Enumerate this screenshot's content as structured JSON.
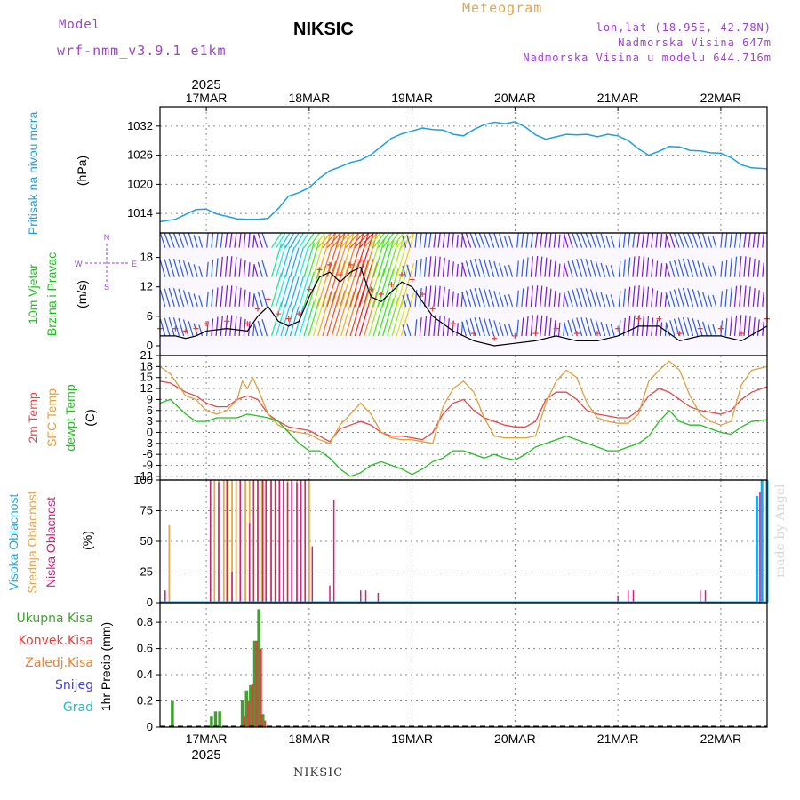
{
  "header": {
    "model_label": "Model",
    "model_value": "wrf-nmm_v3.9.1 e1km",
    "station": "NIKSIC",
    "product": "Meteogram",
    "lonlat": "lon,lat (18.95E, 42.78N)",
    "elevation": "Nadmorska Visina 647m",
    "model_elevation": "Nadmorska Visina u modelu 644.716m"
  },
  "footer": {
    "station": "NIKSIC",
    "credit": "made by Angel"
  },
  "time_axis": {
    "year": "2025",
    "dates": [
      "17MAR",
      "18MAR",
      "19MAR",
      "20MAR",
      "21MAR",
      "22MAR"
    ]
  },
  "panel_labels": {
    "pressure": [
      "Pritisak na nivou mora",
      "(hPa)"
    ],
    "wind": [
      "10m Vjetar",
      "Brzina i Pravac",
      "(m/s)"
    ],
    "compass": {
      "n": "N",
      "e": "E",
      "w": "W",
      "s": "S"
    },
    "temp": [
      "2m Temp",
      "SFC Temp",
      "dewpt Temp",
      "(C)"
    ],
    "cloud": [
      "Visoka Oblacnost",
      "Srednja Oblacnost",
      "Niska Oblacnost",
      "(%)"
    ],
    "precip": [
      "Ukupna Kisa",
      "Konvek.Kisa",
      "Zaledj.Kisa",
      "Snijeg",
      "Grad",
      "1hr Precip (mm)"
    ]
  },
  "colors": {
    "pressure": "#1ca0e0",
    "temp2m": "#e84848",
    "sfc": "#e0a040",
    "dewpt": "#20c020",
    "cloud_high": "#20a8e0",
    "cloud_mid": "#e0a850",
    "cloud_low": "#d02080",
    "precip_total": "#40a030",
    "precip_conv": "#e04040",
    "precip_frz": "#f08030",
    "snow": "#4040e0",
    "grad": "#20c0c0"
  },
  "chart_data": [
    {
      "type": "line",
      "title": "",
      "ylabel": "(hPa)",
      "ylim": [
        1010,
        1036
      ],
      "yticks": [
        1014,
        1020,
        1026,
        1032
      ],
      "xlim": [
        16.55,
        22.45
      ],
      "series": [
        {
          "name": "Pritisak na nivou mora",
          "x": [
            16.55,
            16.7,
            16.8,
            16.9,
            17.0,
            17.1,
            17.2,
            17.3,
            17.4,
            17.5,
            17.6,
            17.7,
            17.8,
            17.9,
            18.0,
            18.1,
            18.2,
            18.3,
            18.4,
            18.5,
            18.6,
            18.7,
            18.8,
            18.9,
            19.0,
            19.1,
            19.2,
            19.3,
            19.4,
            19.5,
            19.6,
            19.7,
            19.8,
            19.9,
            20.0,
            20.1,
            20.2,
            20.3,
            20.4,
            20.5,
            20.6,
            20.7,
            20.8,
            20.9,
            21.0,
            21.1,
            21.2,
            21.3,
            21.4,
            21.5,
            21.6,
            21.7,
            21.8,
            21.9,
            22.0,
            22.1,
            22.2,
            22.3,
            22.45
          ],
          "y": [
            1012.3,
            1012.8,
            1013.8,
            1014.8,
            1014.9,
            1013.9,
            1013.4,
            1012.9,
            1012.8,
            1012.8,
            1013.0,
            1015.0,
            1017.6,
            1018.3,
            1019.3,
            1021.3,
            1022.8,
            1023.6,
            1024.5,
            1025.0,
            1026.1,
            1027.8,
            1029.5,
            1030.4,
            1031.0,
            1031.6,
            1031.3,
            1031.2,
            1030.3,
            1030.0,
            1031.3,
            1032.3,
            1032.8,
            1032.5,
            1032.9,
            1031.8,
            1030.2,
            1029.3,
            1029.8,
            1030.3,
            1030.2,
            1030.3,
            1029.8,
            1030.3,
            1030.0,
            1029.0,
            1027.3,
            1026.0,
            1026.8,
            1027.8,
            1027.7,
            1027.0,
            1026.9,
            1026.5,
            1026.4,
            1025.5,
            1024.0,
            1023.4,
            1023.2
          ]
        }
      ]
    },
    {
      "type": "barbs",
      "ylabel": "(m/s)",
      "ylim": [
        -2,
        23
      ],
      "yticks": [
        0,
        6,
        12,
        18
      ],
      "xlim": [
        16.55,
        22.45
      ],
      "series": [
        {
          "name": "10m wind speed",
          "x": [
            16.55,
            16.7,
            16.8,
            16.9,
            17.0,
            17.2,
            17.4,
            17.5,
            17.6,
            17.7,
            17.8,
            17.9,
            18.0,
            18.1,
            18.2,
            18.3,
            18.4,
            18.5,
            18.6,
            18.7,
            18.8,
            18.9,
            19.0,
            19.1,
            19.2,
            19.4,
            19.6,
            19.8,
            20.0,
            20.2,
            20.4,
            20.6,
            20.8,
            21.0,
            21.2,
            21.4,
            21.6,
            21.8,
            22.0,
            22.2,
            22.45
          ],
          "y": [
            2,
            2,
            1.5,
            2,
            3,
            3.5,
            3,
            6,
            8,
            5,
            4,
            5,
            10,
            14,
            15,
            13,
            15,
            16,
            10,
            9,
            11,
            13,
            12,
            9,
            6,
            3,
            1,
            0,
            0.5,
            1,
            2,
            1,
            1,
            2,
            4,
            4,
            1,
            2,
            2,
            1,
            4
          ]
        }
      ],
      "compass_label": "W <- -> E   S <- -> N"
    },
    {
      "type": "line",
      "ylabel": "(C)",
      "ylim": [
        -13,
        21
      ],
      "yticks": [
        -12,
        -9,
        -6,
        -3,
        0,
        3,
        6,
        9,
        12,
        15,
        18,
        21
      ],
      "xlim": [
        16.55,
        22.45
      ],
      "series": [
        {
          "name": "2m Temp",
          "x": [
            16.55,
            16.65,
            16.8,
            16.9,
            17.0,
            17.1,
            17.2,
            17.3,
            17.4,
            17.5,
            17.6,
            17.7,
            17.8,
            17.9,
            18.0,
            18.1,
            18.2,
            18.3,
            18.4,
            18.5,
            18.6,
            18.7,
            18.8,
            18.9,
            19.0,
            19.1,
            19.2,
            19.3,
            19.4,
            19.5,
            19.6,
            19.7,
            19.8,
            19.9,
            20.0,
            20.1,
            20.2,
            20.3,
            20.4,
            20.5,
            20.6,
            20.7,
            20.8,
            20.9,
            21.0,
            21.1,
            21.2,
            21.3,
            21.4,
            21.5,
            21.6,
            21.7,
            21.8,
            21.9,
            22.0,
            22.1,
            22.2,
            22.3,
            22.45
          ],
          "y": [
            14,
            13.5,
            11,
            10,
            8,
            7,
            7,
            9,
            10,
            9,
            5,
            3,
            1.5,
            1,
            0.5,
            -1,
            -2.5,
            1,
            2,
            3,
            2,
            0,
            -1,
            -1,
            -1.5,
            -2,
            0,
            5,
            8,
            9,
            6,
            4,
            3,
            2,
            1.5,
            1.5,
            3,
            9,
            11,
            11,
            9,
            6,
            5,
            4.5,
            4,
            4,
            6,
            10,
            12,
            11,
            9,
            7,
            6,
            5.5,
            5,
            6,
            9,
            11,
            12.5
          ]
        },
        {
          "name": "SFC Temp",
          "x": [
            16.55,
            16.65,
            16.8,
            16.9,
            17.0,
            17.1,
            17.2,
            17.3,
            17.35,
            17.4,
            17.45,
            17.5,
            17.6,
            17.7,
            17.8,
            17.9,
            18.0,
            18.1,
            18.2,
            18.3,
            18.4,
            18.5,
            18.6,
            18.7,
            18.8,
            18.9,
            19.0,
            19.1,
            19.2,
            19.3,
            19.4,
            19.5,
            19.6,
            19.7,
            19.8,
            19.9,
            20.0,
            20.1,
            20.2,
            20.3,
            20.4,
            20.5,
            20.6,
            20.7,
            20.8,
            20.9,
            21.0,
            21.1,
            21.2,
            21.3,
            21.4,
            21.5,
            21.6,
            21.7,
            21.8,
            21.9,
            22.0,
            22.1,
            22.2,
            22.3,
            22.45
          ],
          "y": [
            18,
            16,
            10,
            9,
            6,
            5,
            6,
            9,
            14,
            12,
            15,
            12,
            5,
            2,
            0.5,
            0,
            -0.5,
            -2,
            -3,
            2,
            5,
            8,
            5,
            0,
            -1.5,
            -2,
            -2,
            -2.5,
            -3,
            7,
            12,
            14,
            11,
            4,
            -1,
            -1.5,
            -1.5,
            -1.5,
            -1,
            8,
            14,
            17,
            15,
            8,
            4,
            3,
            2.5,
            2.5,
            5,
            14,
            17,
            19.5,
            17,
            10,
            5,
            3,
            2,
            3,
            13,
            17,
            18
          ]
        },
        {
          "name": "dewpt Temp",
          "x": [
            16.55,
            16.65,
            16.8,
            16.9,
            17.0,
            17.1,
            17.2,
            17.3,
            17.4,
            17.5,
            17.6,
            17.7,
            17.8,
            17.9,
            18.0,
            18.1,
            18.2,
            18.3,
            18.4,
            18.5,
            18.6,
            18.7,
            18.8,
            18.9,
            19.0,
            19.1,
            19.2,
            19.3,
            19.4,
            19.5,
            19.6,
            19.7,
            19.8,
            19.9,
            20.0,
            20.1,
            20.2,
            20.3,
            20.4,
            20.5,
            20.6,
            20.7,
            20.8,
            20.9,
            21.0,
            21.1,
            21.2,
            21.3,
            21.4,
            21.5,
            21.6,
            21.7,
            21.8,
            21.9,
            22.0,
            22.1,
            22.2,
            22.3,
            22.45
          ],
          "y": [
            8,
            9,
            5,
            3,
            3,
            4,
            4,
            4,
            5,
            4.5,
            4,
            3,
            0,
            -3,
            -5,
            -5,
            -7,
            -10,
            -12,
            -11,
            -9,
            -8,
            -9,
            -10,
            -11.5,
            -10,
            -8,
            -7,
            -5,
            -5,
            -6,
            -7,
            -6,
            -7,
            -7.5,
            -6,
            -4,
            -3,
            -2,
            -1,
            -2,
            -3,
            -4,
            -5,
            -5,
            -4,
            -3,
            -1,
            3,
            6,
            3,
            2,
            2,
            1,
            0,
            -0.5,
            1.5,
            3,
            3.5
          ]
        }
      ]
    },
    {
      "type": "bar",
      "ylabel": "(%)",
      "ylim": [
        0,
        100
      ],
      "yticks": [
        0,
        25,
        50,
        75,
        100
      ],
      "xlim": [
        16.55,
        22.45
      ],
      "series": [
        {
          "name": "Visoka Oblacnost",
          "x": [
            22.35,
            22.4,
            22.45
          ],
          "y": [
            87,
            100,
            100
          ]
        },
        {
          "name": "Srednja Oblacnost",
          "x": [
            16.64,
            17.04,
            17.08,
            17.12,
            17.17,
            17.21,
            17.25,
            17.29,
            17.33,
            17.38,
            17.42,
            17.46,
            17.5,
            17.54,
            17.58,
            17.63,
            17.67,
            17.71,
            17.75,
            17.79,
            17.83,
            17.88,
            17.92,
            17.96,
            18.0
          ],
          "y": [
            63,
            100,
            100,
            100,
            100,
            100,
            100,
            100,
            100,
            100,
            100,
            100,
            100,
            100,
            100,
            100,
            100,
            100,
            100,
            100,
            100,
            100,
            100,
            100,
            100
          ]
        },
        {
          "name": "Niska Oblacnost",
          "x": [
            16.6,
            17.04,
            17.12,
            17.2,
            17.25,
            17.33,
            17.42,
            17.46,
            17.5,
            17.55,
            17.58,
            17.63,
            17.67,
            17.71,
            17.75,
            17.79,
            17.83,
            17.88,
            17.92,
            17.96,
            18.03,
            18.2,
            18.24,
            18.5,
            18.55,
            18.67,
            21.0,
            21.1,
            21.15,
            21.8,
            21.85,
            22.38
          ],
          "y": [
            10,
            100,
            98,
            100,
            25,
            100,
            65,
            100,
            100,
            100,
            100,
            100,
            100,
            100,
            100,
            98,
            100,
            98,
            100,
            100,
            46,
            14,
            84,
            10,
            10,
            8,
            6,
            10,
            10,
            10,
            10,
            90
          ]
        }
      ]
    },
    {
      "type": "bar",
      "ylabel": "1hr Precip (mm)",
      "ylim": [
        0,
        0.95
      ],
      "yticks": [
        0,
        0.2,
        0.4,
        0.6,
        0.8
      ],
      "xlim": [
        16.55,
        22.45
      ],
      "series": [
        {
          "name": "Ukupna Kisa",
          "x": [
            16.67,
            17.05,
            17.09,
            17.13,
            17.35,
            17.39,
            17.43,
            17.47,
            17.51,
            17.55,
            17.59
          ],
          "y": [
            0.2,
            0.08,
            0.12,
            0.12,
            0.21,
            0.28,
            0.32,
            0.66,
            0.9,
            0.1,
            0.0
          ]
        },
        {
          "name": "Konvek.Kisa",
          "x": [
            17.37,
            17.41,
            17.45,
            17.49,
            17.53,
            17.57
          ],
          "y": [
            0.08,
            0.2,
            0.33,
            0.66,
            0.6,
            0.05
          ]
        }
      ]
    }
  ]
}
